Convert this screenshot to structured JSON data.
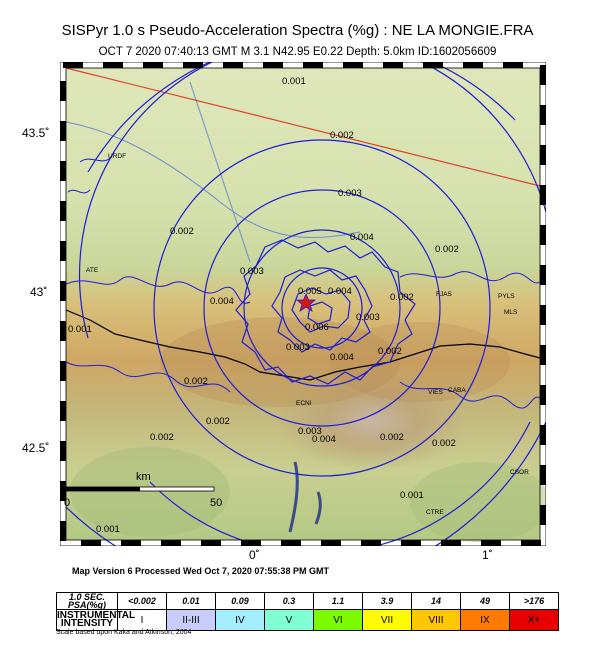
{
  "header": {
    "title": "SISPyr 1.0 s Pseudo-Acceleration Spectra (%g) : NE LA MONGIE.FRA",
    "subtitle": "OCT 7 2020 07:40:13  GMT    M 3.1    N42.95 E0.22    Depth: 5.0km    ID:1602056609"
  },
  "map": {
    "lat_labels": [
      "43.5˚",
      "43˚",
      "42.5˚"
    ],
    "lon_labels": [
      "0˚",
      "1˚"
    ],
    "contour_labels": [
      "0.001",
      "0.002",
      "0.003",
      "0.004",
      "0.005",
      "0.006"
    ],
    "place_labels": [
      "URDF",
      "PYLS",
      "MLS",
      "ECNI",
      "CABA",
      "CSOR",
      "CTRE",
      "FJAS",
      "VIES",
      "ATE"
    ],
    "scale_bar": {
      "unit": "km",
      "start": "0",
      "end": "50"
    },
    "colors": {
      "contour": "#1d1dd6",
      "fault_line": "#e0402a",
      "border": "#000000",
      "epicenter": "#d8161a"
    }
  },
  "footer": {
    "note": "Map Version 6 Processed Wed Oct  7, 2020 07:55:38 PM GMT",
    "scale_note": "Scale based upon Kaka and Atkinson, 2004"
  },
  "legend": {
    "psa_header": "1.0 SEC. PSA(%g)",
    "intensity_header_1": "INSTRUMENTAL",
    "intensity_header_2": "INTENSITY",
    "psa": [
      "<0.002",
      "0.01",
      "0.09",
      "0.3",
      "1.1",
      "3.9",
      "14",
      "49",
      ">176"
    ],
    "intensity": [
      "I",
      "II-III",
      "IV",
      "V",
      "VI",
      "VII",
      "VIII",
      "IX",
      "X+"
    ],
    "colors": [
      "#ffffff",
      "#c9cdfe",
      "#a5eefe",
      "#7fffd3",
      "#7efa00",
      "#fffb00",
      "#ffc700",
      "#ff7a00",
      "#e70000"
    ]
  }
}
